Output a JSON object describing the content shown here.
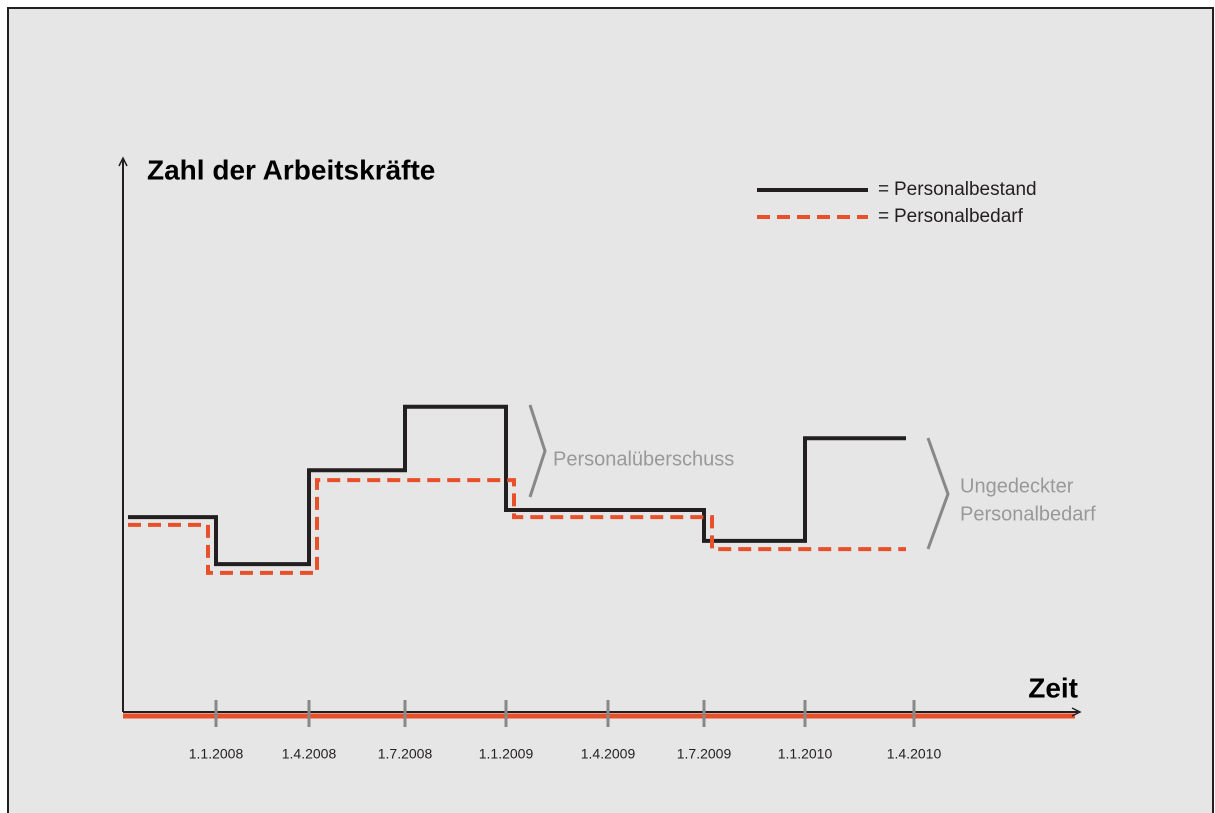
{
  "chart_data": {
    "type": "step",
    "title": "Zahl der Arbeitskräfte",
    "x_label": "Zeit",
    "categories": [
      "1.1.2008",
      "1.4.2008",
      "1.7.2008",
      "1.1.2009",
      "1.4.2009",
      "1.7.2009",
      "1.1.2010",
      "1.4.2010"
    ],
    "ylim": [
      0,
      100
    ],
    "legend_prefix": "=",
    "series": [
      {
        "name": "Personalbestand",
        "color": "#231f20",
        "dash": false,
        "values": [
          35.3,
          26.8,
          43.8,
          55.3,
          36.6,
          36.6,
          31.0,
          49.6
        ]
      },
      {
        "name": "Personalbedarf",
        "color": "#e8502a",
        "dash": true,
        "values": [
          33.9,
          25.2,
          42.0,
          42.0,
          35.3,
          35.3,
          29.5,
          29.5
        ]
      }
    ],
    "annotations": [
      {
        "lines": [
          "Personalüberschuss"
        ]
      },
      {
        "lines": [
          "Ungedeckter",
          "Personalbedarf"
        ]
      }
    ]
  }
}
